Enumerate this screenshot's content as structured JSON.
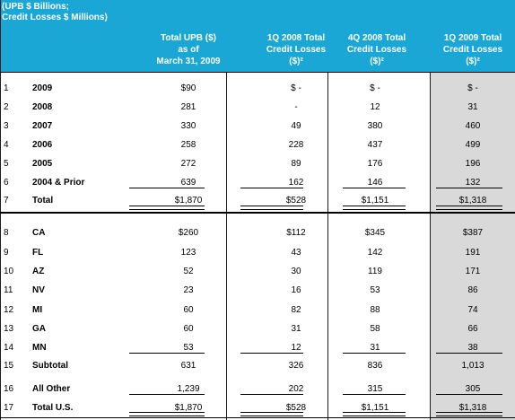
{
  "header": {
    "units_line1": "(UPB $ Billions;",
    "units_line2": "Credit Losses $ Millions)",
    "col1": [
      "Total UPB ($)",
      "as of",
      "March 31, 2009"
    ],
    "col2": [
      "1Q 2008 Total",
      "Credit Losses",
      "($)²"
    ],
    "col3": [
      "4Q 2008 Total",
      "Credit Losses",
      "($)²"
    ],
    "col4": [
      "1Q 2009 Total",
      "Credit Losses",
      "($)²"
    ]
  },
  "vintage_rows": [
    {
      "n": "1",
      "label": "2009",
      "upb": "$90",
      "q1_08": "$ -",
      "q4_08": "$ -",
      "q1_09": "$ -"
    },
    {
      "n": "2",
      "label": "2008",
      "upb": "281",
      "q1_08": "-",
      "q4_08": "12",
      "q1_09": "31"
    },
    {
      "n": "3",
      "label": "2007",
      "upb": "330",
      "q1_08": "49",
      "q4_08": "380",
      "q1_09": "460"
    },
    {
      "n": "4",
      "label": "2006",
      "upb": "258",
      "q1_08": "228",
      "q4_08": "437",
      "q1_09": "499"
    },
    {
      "n": "5",
      "label": "2005",
      "upb": "272",
      "q1_08": "89",
      "q4_08": "176",
      "q1_09": "196"
    },
    {
      "n": "6",
      "label": "2004 & Prior",
      "upb": "639",
      "q1_08": "162",
      "q4_08": "146",
      "q1_09": "132"
    },
    {
      "n": "7",
      "label": "Total",
      "upb": "$1,870",
      "q1_08": "$528",
      "q4_08": "$1,151",
      "q1_09": "$1,318"
    }
  ],
  "state_rows": [
    {
      "n": "8",
      "label": "CA",
      "upb": "$260",
      "q1_08": "$112",
      "q4_08": "$345",
      "q1_09": "$387"
    },
    {
      "n": "9",
      "label": "FL",
      "upb": "123",
      "q1_08": "43",
      "q4_08": "142",
      "q1_09": "191"
    },
    {
      "n": "10",
      "label": "AZ",
      "upb": "52",
      "q1_08": "30",
      "q4_08": "119",
      "q1_09": "171"
    },
    {
      "n": "11",
      "label": "NV",
      "upb": "23",
      "q1_08": "16",
      "q4_08": "53",
      "q1_09": "86"
    },
    {
      "n": "12",
      "label": "MI",
      "upb": "60",
      "q1_08": "82",
      "q4_08": "88",
      "q1_09": "74"
    },
    {
      "n": "13",
      "label": "GA",
      "upb": "60",
      "q1_08": "31",
      "q4_08": "58",
      "q1_09": "66"
    },
    {
      "n": "14",
      "label": "MN",
      "upb": "53",
      "q1_08": "12",
      "q4_08": "31",
      "q1_09": "38"
    },
    {
      "n": "15",
      "label": "Subtotal",
      "upb": "631",
      "q1_08": "326",
      "q4_08": "836",
      "q1_09": "1,013"
    },
    {
      "n": "16",
      "label": "All Other",
      "upb": "1,239",
      "q1_08": "202",
      "q4_08": "315",
      "q1_09": "305"
    },
    {
      "n": "17",
      "label": "Total U.S.",
      "upb": "$1,870",
      "q1_08": "$528",
      "q4_08": "$1,151",
      "q1_09": "$1,318"
    }
  ],
  "colors": {
    "header_bg": "#1aa7d6",
    "shade": "#d9d9d9"
  }
}
